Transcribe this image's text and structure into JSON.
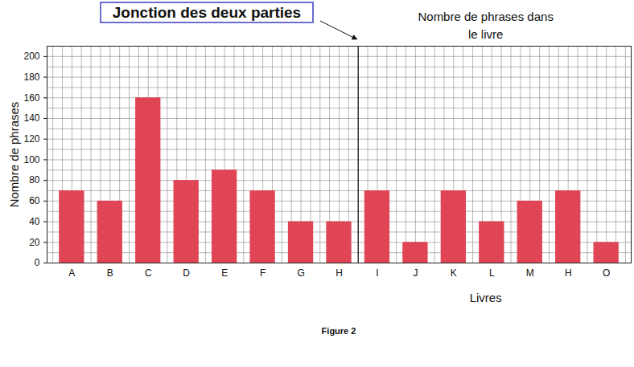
{
  "chart_data": {
    "type": "bar",
    "title": "Nombre de phrases dans le livre",
    "annotations": [
      "Jonction des deux parties"
    ],
    "caption": "Figure 2",
    "x_label": "Livres",
    "y_label": "Nombre de phrases",
    "categories": [
      "A",
      "B",
      "C",
      "D",
      "E",
      "F",
      "G",
      "H",
      "I",
      "J",
      "K",
      "L",
      "M",
      "H",
      "O"
    ],
    "values": [
      70,
      60,
      160,
      80,
      90,
      70,
      40,
      40,
      70,
      20,
      70,
      40,
      60,
      70,
      20
    ],
    "color": "#e04556",
    "ylim": [
      0,
      210
    ],
    "yticks": [
      0,
      20,
      40,
      60,
      80,
      100,
      120,
      140,
      160,
      180,
      200
    ],
    "grid": true
  }
}
